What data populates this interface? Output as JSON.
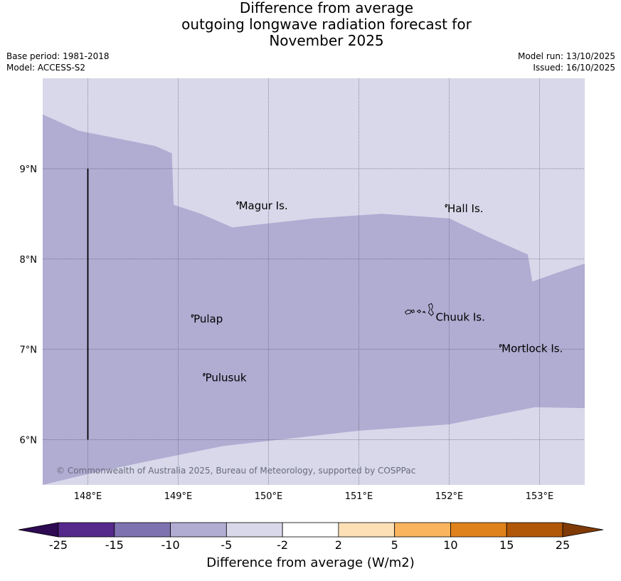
{
  "title": {
    "line1": "Difference from average",
    "line2": "outgoing longwave radiation forecast for",
    "line3": "November 2025"
  },
  "meta": {
    "base_period": "Base period: 1981-2018",
    "model": "Model: ACCESS-S2",
    "model_run": "Model run: 13/10/2025",
    "issued": "Issued: 16/10/2025"
  },
  "map": {
    "lon_range": [
      147.5,
      153.5
    ],
    "lat_range": [
      5.5,
      10.0
    ],
    "lon_ticks": [
      {
        "value": 148,
        "label": "148°E"
      },
      {
        "value": 149,
        "label": "149°E"
      },
      {
        "value": 150,
        "label": "150°E"
      },
      {
        "value": 151,
        "label": "151°E"
      },
      {
        "value": 152,
        "label": "152°E"
      },
      {
        "value": 153,
        "label": "153°E"
      }
    ],
    "lat_ticks": [
      {
        "value": 9,
        "label": "9°N"
      },
      {
        "value": 8,
        "label": "8°N"
      },
      {
        "value": 7,
        "label": "7°N"
      },
      {
        "value": 6,
        "label": "6°N"
      }
    ],
    "places": [
      {
        "name": "Magur Is.",
        "lon": 149.67,
        "lat": 8.58
      },
      {
        "name": "Hall Is.",
        "lon": 151.98,
        "lat": 8.55
      },
      {
        "name": "Pulap",
        "lon": 149.17,
        "lat": 7.33
      },
      {
        "name": "Chuuk Is.",
        "lon": 151.85,
        "lat": 7.35
      },
      {
        "name": "Mortlock Is.",
        "lon": 152.58,
        "lat": 7.0
      },
      {
        "name": "Pulusuk",
        "lon": 149.3,
        "lat": 6.68
      }
    ],
    "boundary_line": {
      "lon": 148.0,
      "lat_from": 6.0,
      "lat_to": 9.0
    },
    "colors": {
      "light": "#d8d8ea",
      "medium": "#b0acd2"
    },
    "copyright": "© Commonwealth of Australia 2025, Bureau of Meteorology, supported by COSPPac"
  },
  "colorbar": {
    "boundaries": [
      "-25",
      "-15",
      "-10",
      "-5",
      "-2",
      "2",
      "5",
      "10",
      "15",
      "25"
    ],
    "colors": [
      "#55288c",
      "#7e72b0",
      "#b0acd2",
      "#d8d8ea",
      "#ffffff",
      "#fde0b6",
      "#fbb45e",
      "#e0821c",
      "#b15708"
    ],
    "under_color": "#2d0a52",
    "over_color": "#7f3a06",
    "label": "Difference from average (W/m2)"
  }
}
